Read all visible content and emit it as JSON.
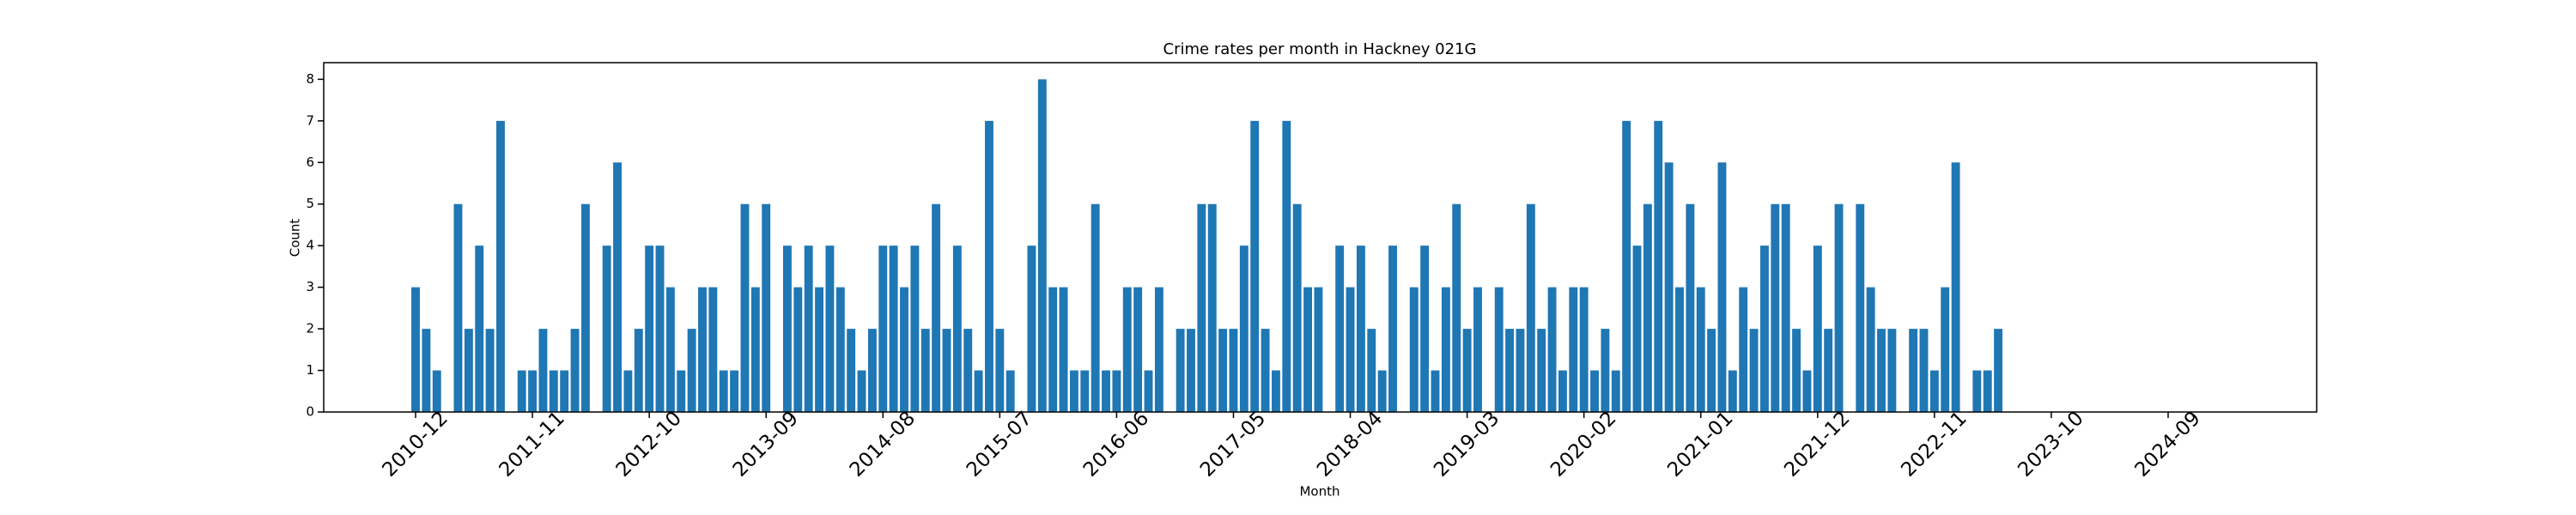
{
  "chart_data": {
    "type": "bar",
    "title": "Crime rates per month in Hackney 021G",
    "x_label": "Month",
    "y_label": "Count",
    "color": "#1f77b4",
    "categories": [
      "2010-12",
      null,
      null,
      null,
      null,
      null,
      null,
      null,
      null,
      null,
      null,
      "2011-11",
      null,
      null,
      null,
      null,
      null,
      null,
      null,
      null,
      null,
      null,
      "2012-10",
      null,
      null,
      null,
      null,
      null,
      null,
      null,
      null,
      null,
      null,
      "2013-09",
      null,
      null,
      null,
      null,
      null,
      null,
      null,
      null,
      null,
      null,
      "2014-08",
      null,
      null,
      null,
      null,
      null,
      null,
      null,
      null,
      null,
      null,
      "2015-07",
      null,
      null,
      null,
      null,
      null,
      null,
      null,
      null,
      null,
      null,
      "2016-06",
      null,
      null,
      null,
      null,
      null,
      null,
      null,
      null,
      null,
      null,
      "2017-05",
      null,
      null,
      null,
      null,
      null,
      null,
      null,
      null,
      null,
      null,
      "2018-04",
      null,
      null,
      null,
      null,
      null,
      null,
      null,
      null,
      null,
      null,
      "2019-03",
      null,
      null,
      null,
      null,
      null,
      null,
      null,
      null,
      null,
      null,
      "2020-02",
      null,
      null,
      null,
      null,
      null,
      null,
      null,
      null,
      null,
      null,
      "2021-01",
      null,
      null,
      null,
      null,
      null,
      null,
      null,
      null,
      null,
      null,
      "2021-12",
      null,
      null,
      null,
      null,
      null,
      null,
      null,
      null,
      null,
      null,
      "2022-11",
      null,
      null,
      null,
      null,
      null,
      null,
      null,
      null,
      null,
      null,
      "2023-10",
      null,
      null,
      null,
      null,
      null,
      null,
      null,
      null,
      null,
      null,
      "2024-09"
    ],
    "values": [
      3,
      2,
      1,
      0,
      5,
      2,
      4,
      2,
      7,
      0,
      1,
      1,
      2,
      1,
      1,
      2,
      5,
      0,
      4,
      6,
      1,
      2,
      4,
      4,
      3,
      1,
      2,
      3,
      3,
      1,
      1,
      5,
      3,
      5,
      0,
      4,
      3,
      4,
      3,
      4,
      3,
      2,
      1,
      2,
      4,
      4,
      3,
      4,
      2,
      5,
      2,
      4,
      2,
      1,
      7,
      2,
      1,
      0,
      4,
      8,
      3,
      3,
      1,
      1,
      5,
      1,
      1,
      3,
      3,
      1,
      3,
      0,
      2,
      2,
      5,
      5,
      2,
      2,
      4,
      7,
      2,
      1,
      7,
      5,
      3,
      3,
      0,
      4,
      3,
      4,
      2,
      1,
      4,
      0,
      3,
      4,
      1,
      3,
      5,
      2,
      3,
      0,
      3,
      2,
      2,
      5,
      2,
      3,
      1,
      3,
      3,
      1,
      2,
      1,
      7,
      4,
      5,
      7,
      6,
      3,
      5,
      3,
      2,
      6,
      1,
      3,
      2,
      4,
      5,
      5,
      2,
      1,
      4,
      2,
      5,
      0,
      5,
      3,
      2,
      2,
      0,
      2,
      2,
      1,
      3,
      6,
      0,
      1,
      1,
      2,
      null,
      null,
      null,
      null,
      null,
      null,
      null,
      null,
      null,
      null,
      null,
      null,
      null,
      null,
      null,
      null
    ],
    "ylim": [
      0,
      8.4
    ],
    "yticks": [
      0,
      1,
      2,
      3,
      4,
      5,
      6,
      7,
      8
    ]
  }
}
